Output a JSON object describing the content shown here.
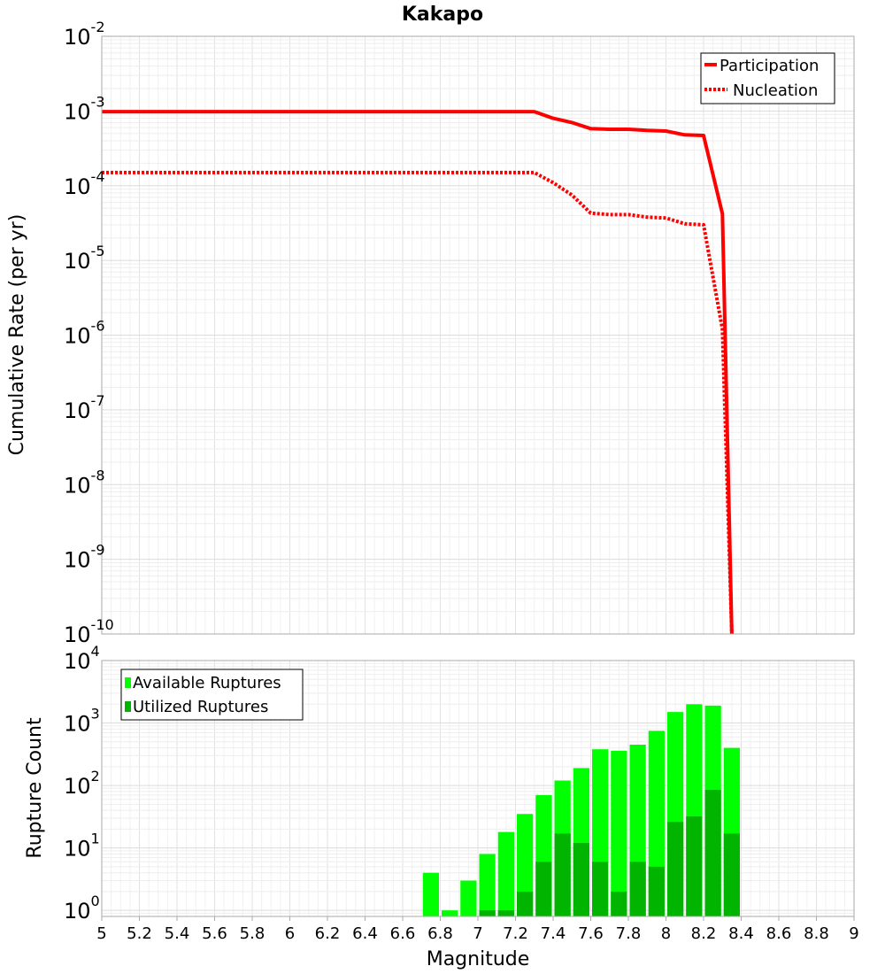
{
  "chart_data": [
    {
      "type": "line",
      "title": "Kakapo",
      "xlabel": "",
      "ylabel": "Cumulative Rate (per yr)",
      "yscale": "log",
      "xlim": [
        5,
        9
      ],
      "ylim": [
        1e-10,
        0.01
      ],
      "y_ticks": [
        {
          "base": "10",
          "exp": "-2",
          "value": 0.01
        },
        {
          "base": "10",
          "exp": "-3",
          "value": 0.001
        },
        {
          "base": "10",
          "exp": "-4",
          "value": 0.0001
        },
        {
          "base": "10",
          "exp": "-5",
          "value": 1e-05
        },
        {
          "base": "10",
          "exp": "-6",
          "value": 1e-06
        },
        {
          "base": "10",
          "exp": "-7",
          "value": 1e-07
        },
        {
          "base": "10",
          "exp": "-8",
          "value": 1e-08
        },
        {
          "base": "10",
          "exp": "-9",
          "value": 1e-09
        },
        {
          "base": "10",
          "exp": "-10",
          "value": 1e-10
        }
      ],
      "legend_position": "top-right",
      "series": [
        {
          "name": "Participation",
          "color": "#ff0000",
          "style": "solid",
          "x": [
            5.0,
            7.3,
            7.4,
            7.5,
            7.6,
            7.7,
            7.8,
            7.9,
            8.0,
            8.1,
            8.2,
            8.3,
            8.35
          ],
          "y": [
            0.00098,
            0.00098,
            0.0008,
            0.0007,
            0.00058,
            0.00057,
            0.00057,
            0.00055,
            0.00054,
            0.00048,
            0.00047,
            4.2e-05,
            1e-10
          ]
        },
        {
          "name": "Nucleation",
          "color": "#ff0000",
          "style": "dotted",
          "x": [
            5.0,
            7.3,
            7.4,
            7.5,
            7.6,
            7.7,
            7.8,
            7.9,
            8.0,
            8.1,
            8.2,
            8.3,
            8.35
          ],
          "y": [
            0.00015,
            0.00015,
            0.00011,
            7.5e-05,
            4.3e-05,
            4.1e-05,
            4.1e-05,
            3.8e-05,
            3.7e-05,
            3.1e-05,
            3e-05,
            1.2e-06,
            1e-10
          ]
        }
      ]
    },
    {
      "type": "bar",
      "title": "",
      "xlabel": "Magnitude",
      "ylabel": "Rupture Count",
      "yscale": "log",
      "xlim": [
        5,
        9
      ],
      "ylim": [
        0.8,
        10000
      ],
      "x_ticks": [
        "5",
        "5.2",
        "5.4",
        "5.6",
        "5.8",
        "6",
        "6.2",
        "6.4",
        "6.6",
        "6.8",
        "7",
        "7.2",
        "7.4",
        "7.6",
        "7.8",
        "8",
        "8.2",
        "8.4",
        "8.6",
        "8.8",
        "9"
      ],
      "y_ticks": [
        {
          "base": "10",
          "exp": "4",
          "value": 10000
        },
        {
          "base": "10",
          "exp": "3",
          "value": 1000
        },
        {
          "base": "10",
          "exp": "2",
          "value": 100
        },
        {
          "base": "10",
          "exp": "1",
          "value": 10
        },
        {
          "base": "10",
          "exp": "0",
          "value": 1
        }
      ],
      "legend_position": "top-left",
      "bin_width": 0.1,
      "bin_centers": [
        6.75,
        6.85,
        6.95,
        7.05,
        7.15,
        7.25,
        7.35,
        7.45,
        7.55,
        7.65,
        7.75,
        7.85,
        7.95,
        8.05,
        8.15,
        8.25,
        8.35
      ],
      "series": [
        {
          "name": "Available Ruptures",
          "color": "#00ff00",
          "values": [
            4,
            1,
            3,
            8,
            18,
            35,
            70,
            120,
            190,
            380,
            360,
            450,
            750,
            1500,
            2000,
            1900,
            400
          ]
        },
        {
          "name": "Utilized Ruptures",
          "color": "#00b400",
          "values": [
            0,
            0,
            0,
            1,
            1,
            2,
            6,
            17,
            12,
            6,
            2,
            6,
            5,
            26,
            32,
            85,
            17
          ]
        }
      ]
    }
  ]
}
